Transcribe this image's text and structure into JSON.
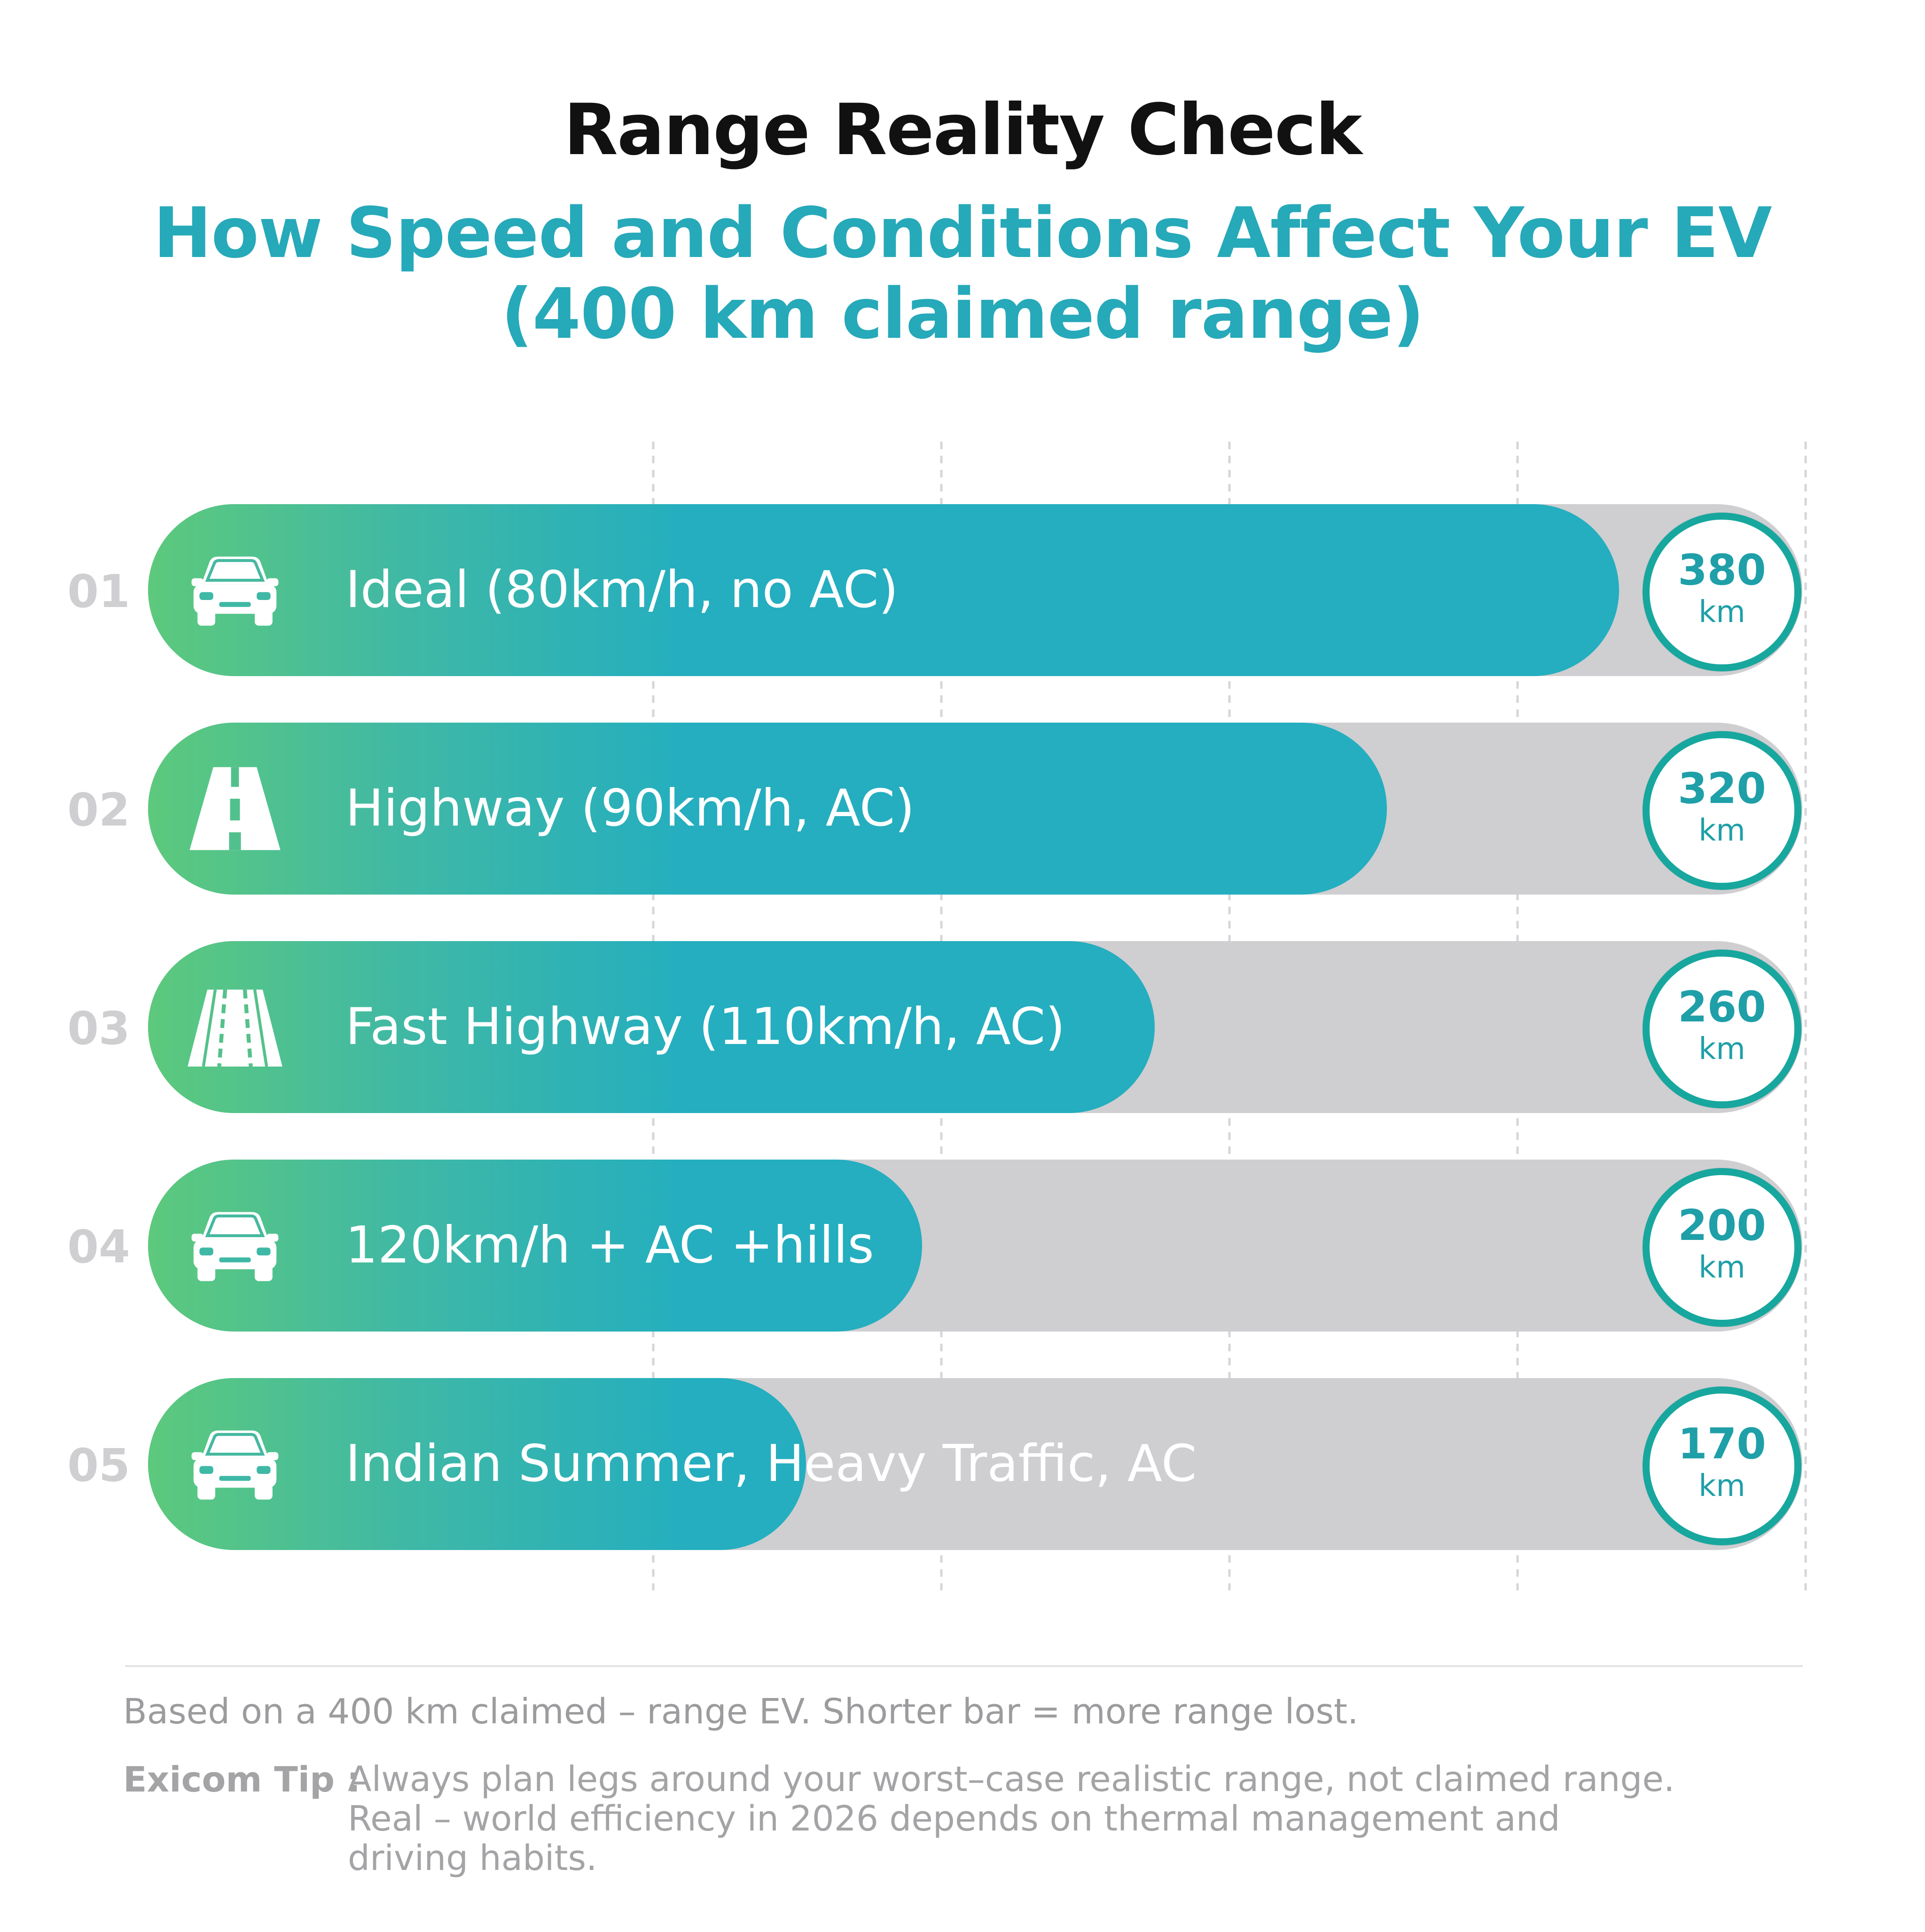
{
  "title": "Range Reality Check",
  "subtitle_lines": [
    "How Speed and Conditions Affect Your EV",
    "(400 km claimed range)"
  ],
  "chart_data": {
    "type": "bar",
    "orientation": "horizontal",
    "max": 400,
    "unit": "km",
    "categories": [
      "Ideal (80km/h, no AC)",
      "Highway (90km/h, AC)",
      "Fast Highway (110km/h, AC)",
      "120km/h + AC +hills",
      "Indian Summer, Heavy Traffic, AC"
    ],
    "values": [
      380,
      320,
      260,
      200,
      170
    ],
    "rows": [
      {
        "num": "01",
        "label": "Ideal (80km/h, no AC)",
        "value": 380,
        "value_text": "380",
        "unit": "km",
        "icon": "car-icon"
      },
      {
        "num": "02",
        "label": "Highway (90km/h, AC)",
        "value": 320,
        "value_text": "320",
        "unit": "km",
        "icon": "road-icon"
      },
      {
        "num": "03",
        "label": "Fast Highway (110km/h, AC)",
        "value": 260,
        "value_text": "260",
        "unit": "km",
        "icon": "multi-lane-road-icon"
      },
      {
        "num": "04",
        "label": "120km/h + AC +hills",
        "value": 200,
        "value_text": "200",
        "unit": "km",
        "icon": "car-icon"
      },
      {
        "num": "05",
        "label": "Indian Summer, Heavy Traffic, AC",
        "value": 170,
        "value_text": "170",
        "unit": "km",
        "icon": "car-icon"
      }
    ],
    "grid": true,
    "colors": {
      "fill_start": "#5dc97c",
      "fill_end": "#24aebf",
      "track": "#cfced1",
      "badge_ring": "#17a79e"
    }
  },
  "footer": {
    "note": "Based on a 400 km claimed – range EV. Shorter bar = more range lost.",
    "tip_label": "Exicom Tip :",
    "tip_lines": [
      "Always plan legs around your worst–case realistic range, not claimed range.",
      "Real – world efficiency in 2026 depends on thermal management and",
      "driving habits."
    ]
  }
}
